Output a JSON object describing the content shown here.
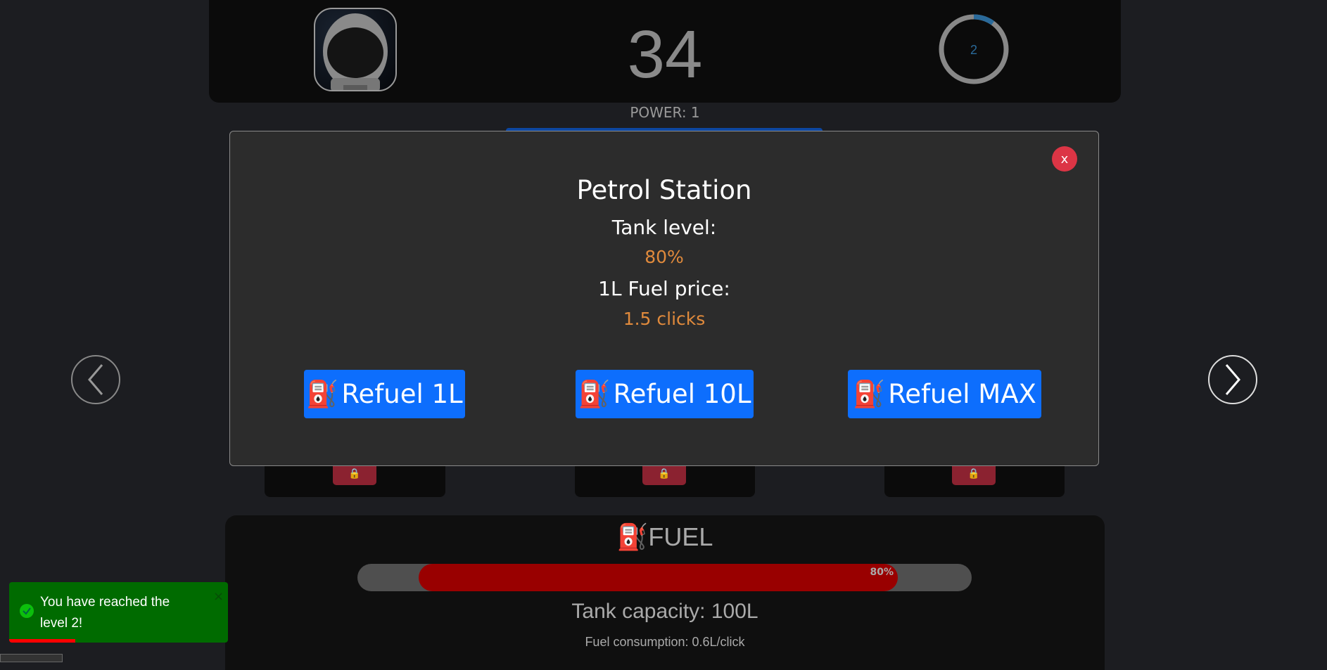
{
  "header": {
    "score": "34",
    "level": "2",
    "level_progress": 0.1,
    "power_label": "POWER: 1"
  },
  "modal": {
    "title": "Petrol Station",
    "tank_level_label": "Tank level:",
    "tank_level_value": "80%",
    "price_label": "1L Fuel price:",
    "price_value": "1.5 clicks",
    "close_label": "x",
    "buttons": [
      {
        "label": "Refuel 1L",
        "icon": "fuel-pump-icon"
      },
      {
        "label": "Refuel 10L",
        "icon": "fuel-pump-icon"
      },
      {
        "label": "Refuel MAX",
        "icon": "fuel-pump-icon"
      }
    ]
  },
  "fuel": {
    "title": "FUEL",
    "percent_label": "80%",
    "percent": 80,
    "capacity": "Tank capacity: 100L",
    "consumption": "Fuel consumption: 0.6L/click"
  },
  "toast": {
    "message": "You have reached the level 2!",
    "close": "×"
  },
  "colors": {
    "accent": "#0d6efd",
    "danger": "#dc3545",
    "fuel": "#990000",
    "highlight": "#e08a3c",
    "toast": "#006b00"
  }
}
